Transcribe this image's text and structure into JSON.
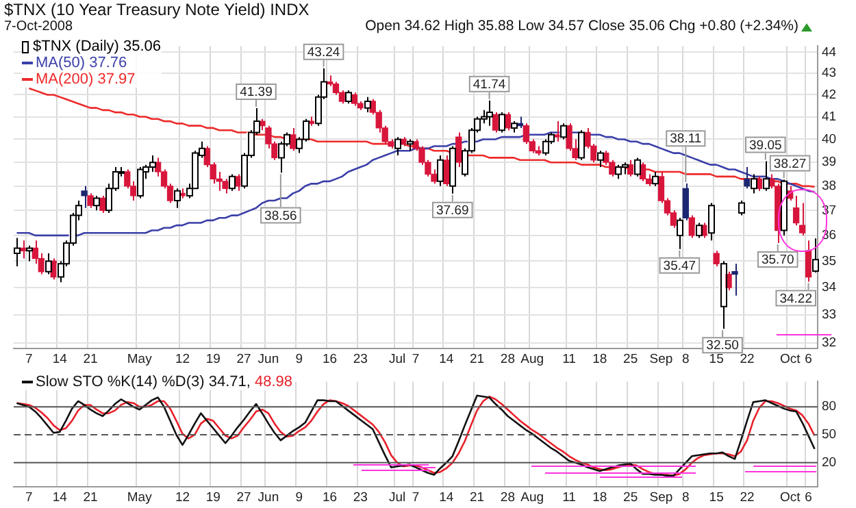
{
  "chart_data": [
    {
      "type": "candlestick",
      "title": "$TNX (10 Year Treasury Note Yield) INDX",
      "subtitle": "7-Oct-2008",
      "annotations": [
        "Open 34.62 High 35.88 Low 34.57 Close 35.06 Chg +0.80 (+2.34%)",
        {
          "text": "41.39",
          "y": 41.39
        },
        {
          "text": "38.56",
          "y": 38.56
        },
        {
          "text": "43.24",
          "y": 43.24
        },
        {
          "text": "37.69",
          "y": 37.69
        },
        {
          "text": "41.74",
          "y": 41.74
        },
        {
          "text": "38.11",
          "y": 38.11
        },
        {
          "text": "35.47",
          "y": 35.47
        },
        {
          "text": "32.50",
          "y": 32.5
        },
        {
          "text": "39.05",
          "y": 39.05
        },
        {
          "text": "38.27",
          "y": 38.27
        },
        {
          "text": "35.70",
          "y": 35.7
        },
        {
          "text": "34.22",
          "x": "6",
          "y": 34.22
        }
      ],
      "legend_title": "$TNX (Daily) 35.06",
      "legend": "top left",
      "grid": true,
      "log": true,
      "ylim": [
        31.8,
        44.3
      ],
      "yticks": [
        32,
        33,
        34,
        35,
        36,
        37,
        38,
        39,
        40,
        41,
        42,
        43,
        44
      ],
      "categories": [
        null,
        null,
        "7",
        null,
        null,
        null,
        null,
        "14",
        null,
        null,
        null,
        null,
        "21",
        null,
        null,
        null,
        null,
        null,
        null,
        null,
        "May",
        null,
        null,
        null,
        null,
        null,
        null,
        "12",
        null,
        null,
        null,
        null,
        "19",
        null,
        null,
        null,
        null,
        "27",
        null,
        null,
        null,
        "Jun",
        null,
        null,
        null,
        null,
        "9",
        null,
        null,
        null,
        null,
        "16",
        null,
        null,
        null,
        null,
        "23",
        null,
        null,
        null,
        null,
        null,
        "Jul",
        null,
        null,
        "7",
        null,
        null,
        null,
        null,
        "14",
        null,
        null,
        null,
        null,
        "21",
        null,
        null,
        null,
        null,
        "28",
        null,
        null,
        null,
        "Aug",
        null,
        null,
        null,
        null,
        null,
        "11",
        null,
        null,
        null,
        null,
        "18",
        null,
        null,
        null,
        null,
        "25",
        null,
        null,
        null,
        null,
        "Sep",
        null,
        null,
        null,
        "8",
        null,
        null,
        null,
        null,
        "15",
        null,
        null,
        null,
        null,
        "22",
        null,
        null,
        null,
        null,
        null,
        null,
        "Oct",
        null,
        null,
        "6",
        null
      ],
      "ohlc": [
        [
          35.3,
          35.9,
          34.8,
          35.5
        ],
        [
          35.5,
          35.8,
          35.1,
          35.4
        ],
        [
          35.4,
          35.6,
          35.0,
          35.5
        ],
        [
          35.5,
          35.8,
          34.9,
          35.1
        ],
        [
          35.1,
          35.3,
          34.5,
          34.6
        ],
        [
          34.6,
          35.3,
          34.5,
          35.0
        ],
        [
          35.0,
          35.1,
          34.3,
          34.4
        ],
        [
          34.4,
          35.0,
          34.2,
          34.9
        ],
        [
          34.9,
          35.8,
          34.8,
          35.7
        ],
        [
          35.7,
          36.9,
          35.6,
          36.8
        ],
        [
          36.8,
          37.4,
          36.6,
          37.2
        ],
        [
          37.8,
          38.0,
          37.1,
          37.6
        ],
        [
          37.6,
          37.7,
          37.1,
          37.2
        ],
        [
          37.2,
          37.6,
          37.0,
          37.5
        ],
        [
          37.5,
          37.6,
          36.9,
          37.0
        ],
        [
          37.0,
          38.1,
          36.9,
          37.9
        ],
        [
          37.9,
          38.8,
          37.8,
          38.6
        ],
        [
          38.6,
          38.8,
          38.4,
          38.6
        ],
        [
          38.6,
          38.7,
          37.9,
          38.0
        ],
        [
          38.0,
          38.2,
          37.4,
          37.6
        ],
        [
          37.6,
          38.8,
          37.5,
          38.7
        ],
        [
          38.6,
          38.9,
          38.3,
          38.8
        ],
        [
          38.8,
          39.3,
          38.6,
          39.0
        ],
        [
          39.0,
          39.2,
          38.4,
          38.6
        ],
        [
          38.6,
          38.7,
          37.9,
          38.0
        ],
        [
          38.0,
          38.1,
          37.3,
          37.4
        ],
        [
          37.4,
          37.9,
          37.1,
          37.8
        ],
        [
          37.7,
          37.9,
          37.5,
          37.6
        ],
        [
          37.6,
          38.1,
          37.5,
          37.9
        ],
        [
          37.9,
          39.5,
          37.9,
          39.4
        ],
        [
          39.3,
          39.9,
          39.2,
          39.6
        ],
        [
          39.6,
          39.7,
          38.8,
          38.9
        ],
        [
          38.9,
          39.0,
          38.1,
          38.3
        ],
        [
          38.3,
          38.6,
          37.8,
          38.2
        ],
        [
          38.2,
          38.3,
          37.7,
          37.9
        ],
        [
          37.9,
          38.5,
          37.8,
          38.4
        ],
        [
          38.4,
          38.5,
          37.8,
          38.0
        ],
        [
          38.0,
          39.4,
          37.9,
          39.3
        ],
        [
          39.3,
          40.4,
          39.2,
          40.3
        ],
        [
          40.3,
          41.39,
          40.2,
          40.8
        ],
        [
          40.8,
          40.9,
          40.4,
          40.6
        ],
        [
          40.5,
          40.6,
          39.6,
          39.8
        ],
        [
          39.8,
          39.9,
          39.1,
          39.2
        ],
        [
          39.2,
          39.9,
          38.56,
          39.8
        ],
        [
          39.8,
          40.3,
          39.7,
          40.2
        ],
        [
          40.2,
          40.5,
          39.5,
          39.6
        ],
        [
          39.6,
          40.1,
          39.4,
          40.0
        ],
        [
          40.0,
          40.9,
          39.9,
          40.8
        ],
        [
          40.8,
          41.0,
          40.6,
          40.7
        ],
        [
          40.7,
          42.0,
          40.6,
          41.9
        ],
        [
          41.9,
          43.24,
          41.8,
          42.6
        ],
        [
          42.6,
          42.9,
          42.4,
          42.5
        ],
        [
          42.5,
          42.6,
          42.0,
          42.1
        ],
        [
          42.1,
          42.2,
          41.6,
          41.7
        ],
        [
          41.7,
          42.2,
          41.6,
          42.1
        ],
        [
          42.0,
          42.1,
          41.5,
          41.6
        ],
        [
          41.6,
          41.7,
          41.3,
          41.4
        ],
        [
          41.4,
          41.9,
          41.2,
          41.7
        ],
        [
          41.7,
          41.8,
          41.1,
          41.2
        ],
        [
          41.2,
          41.3,
          40.3,
          40.5
        ],
        [
          40.5,
          40.6,
          39.8,
          39.9
        ],
        [
          39.9,
          40.0,
          39.6,
          39.7
        ],
        [
          39.6,
          40.1,
          39.3,
          40.0
        ],
        [
          40.0,
          40.1,
          39.7,
          39.8
        ],
        [
          39.8,
          40.0,
          39.5,
          39.9
        ],
        [
          39.9,
          40.0,
          39.5,
          39.6
        ],
        [
          39.6,
          39.7,
          38.9,
          39.0
        ],
        [
          39.0,
          39.1,
          38.4,
          38.5
        ],
        [
          38.5,
          38.7,
          38.1,
          38.2
        ],
        [
          38.2,
          39.3,
          38.0,
          39.1
        ],
        [
          39.1,
          39.3,
          38.0,
          38.1
        ],
        [
          38.0,
          39.7,
          37.69,
          39.6
        ],
        [
          40.1,
          40.3,
          38.8,
          39.0
        ],
        [
          38.5,
          39.6,
          38.4,
          39.5
        ],
        [
          39.5,
          40.5,
          39.4,
          40.4
        ],
        [
          40.4,
          41.0,
          40.3,
          40.9
        ],
        [
          40.9,
          41.3,
          40.7,
          41.0
        ],
        [
          41.0,
          41.74,
          40.6,
          41.2
        ],
        [
          41.1,
          41.2,
          40.3,
          40.4
        ],
        [
          40.4,
          41.2,
          40.3,
          41.1
        ],
        [
          41.1,
          41.2,
          40.4,
          40.5
        ],
        [
          40.5,
          40.8,
          40.3,
          40.7
        ],
        [
          40.7,
          41.0,
          40.5,
          40.6
        ],
        [
          40.6,
          40.7,
          39.8,
          39.9
        ],
        [
          39.9,
          40.0,
          39.4,
          39.5
        ],
        [
          39.5,
          39.7,
          39.3,
          39.4
        ],
        [
          39.4,
          40.0,
          39.3,
          39.9
        ],
        [
          39.9,
          40.3,
          39.8,
          40.2
        ],
        [
          40.2,
          40.8,
          39.9,
          40.1
        ],
        [
          40.1,
          40.7,
          40.0,
          40.6
        ],
        [
          40.6,
          40.7,
          39.5,
          39.6
        ],
        [
          39.6,
          40.0,
          39.1,
          39.2
        ],
        [
          39.2,
          40.4,
          39.1,
          40.3
        ],
        [
          40.3,
          40.5,
          39.6,
          39.7
        ],
        [
          39.7,
          39.8,
          39.0,
          39.1
        ],
        [
          39.1,
          39.5,
          38.8,
          39.4
        ],
        [
          39.4,
          39.5,
          38.9,
          39.0
        ],
        [
          39.0,
          39.1,
          38.4,
          38.5
        ],
        [
          38.5,
          38.9,
          38.3,
          38.8
        ],
        [
          38.8,
          39.0,
          38.5,
          38.9
        ],
        [
          38.9,
          39.1,
          38.4,
          38.5
        ],
        [
          38.5,
          39.2,
          38.4,
          39.1
        ],
        [
          38.9,
          39.0,
          38.2,
          38.3
        ],
        [
          38.3,
          38.5,
          38.0,
          38.1
        ],
        [
          38.1,
          38.6,
          38.0,
          38.4
        ],
        [
          38.4,
          38.6,
          37.3,
          37.4
        ],
        [
          37.4,
          37.5,
          36.8,
          36.9
        ],
        [
          36.9,
          37.0,
          36.3,
          36.4
        ],
        [
          36.0,
          36.7,
          35.47,
          36.6
        ],
        [
          37.9,
          38.11,
          36.6,
          36.7
        ],
        [
          36.7,
          36.8,
          35.9,
          36.0
        ],
        [
          36.0,
          36.5,
          35.9,
          36.4
        ],
        [
          36.4,
          36.5,
          35.9,
          36.0
        ],
        [
          36.1,
          37.3,
          35.8,
          37.2
        ],
        [
          35.3,
          35.4,
          34.8,
          34.9
        ],
        [
          33.3,
          35.0,
          32.5,
          34.9
        ],
        [
          34.5,
          34.6,
          33.9,
          34.0
        ],
        [
          34.6,
          34.9,
          33.7,
          34.5
        ],
        [
          36.9,
          37.4,
          36.8,
          37.3
        ],
        [
          38.3,
          38.8,
          37.9,
          38.0
        ],
        [
          37.9,
          38.5,
          37.7,
          38.3
        ],
        [
          38.3,
          38.4,
          37.8,
          37.9
        ],
        [
          37.9,
          39.05,
          37.8,
          38.3
        ],
        [
          38.3,
          38.5,
          37.9,
          38.0
        ],
        [
          38.0,
          38.1,
          35.7,
          36.2
        ],
        [
          36.2,
          38.27,
          36.0,
          38.2
        ],
        [
          37.8,
          38.0,
          37.4,
          37.5
        ],
        [
          37.1,
          37.6,
          36.4,
          36.5
        ],
        [
          36.4,
          37.3,
          36.0,
          36.1
        ],
        [
          35.4,
          35.8,
          34.22,
          34.4
        ],
        [
          34.62,
          35.88,
          34.57,
          35.06
        ]
      ],
      "colors": [
        "#ffffff",
        "#d8163c",
        "#ffffff",
        "#d8163c",
        "#d8163c",
        "#ffffff",
        "#d8163c",
        "#ffffff",
        "#ffffff",
        "#ffffff",
        "#ffffff",
        "#1c2670",
        "#d8163c",
        "#ffffff",
        "#d8163c",
        "#ffffff",
        "#ffffff",
        "#ffffff",
        "#d8163c",
        "#d8163c",
        "#ffffff",
        "#ffffff",
        "#ffffff",
        "#d8163c",
        "#d8163c",
        "#d8163c",
        "#ffffff",
        "#d8163c",
        "#ffffff",
        "#ffffff",
        "#ffffff",
        "#d8163c",
        "#d8163c",
        "#d8163c",
        "#d8163c",
        "#ffffff",
        "#d8163c",
        "#ffffff",
        "#ffffff",
        "#ffffff",
        "#d8163c",
        "#d8163c",
        "#d8163c",
        "#ffffff",
        "#ffffff",
        "#d8163c",
        "#ffffff",
        "#ffffff",
        "#d8163c",
        "#ffffff",
        "#ffffff",
        "#d8163c",
        "#d8163c",
        "#d8163c",
        "#ffffff",
        "#d8163c",
        "#d8163c",
        "#ffffff",
        "#d8163c",
        "#d8163c",
        "#d8163c",
        "#d8163c",
        "#ffffff",
        "#d8163c",
        "#ffffff",
        "#d8163c",
        "#d8163c",
        "#d8163c",
        "#d8163c",
        "#ffffff",
        "#d8163c",
        "#ffffff",
        "#d8163c",
        "#ffffff",
        "#ffffff",
        "#ffffff",
        "#ffffff",
        "#ffffff",
        "#d8163c",
        "#ffffff",
        "#d8163c",
        "#ffffff",
        "#1c2670",
        "#d8163c",
        "#d8163c",
        "#d8163c",
        "#ffffff",
        "#ffffff",
        "#d8163c",
        "#ffffff",
        "#d8163c",
        "#d8163c",
        "#ffffff",
        "#d8163c",
        "#d8163c",
        "#ffffff",
        "#d8163c",
        "#d8163c",
        "#ffffff",
        "#ffffff",
        "#d8163c",
        "#ffffff",
        "#d8163c",
        "#d8163c",
        "#ffffff",
        "#d8163c",
        "#d8163c",
        "#d8163c",
        "#ffffff",
        "#1c2670",
        "#d8163c",
        "#ffffff",
        "#d8163c",
        "#ffffff",
        "#d8163c",
        "#ffffff",
        "#d8163c",
        "#1c2670",
        "#ffffff",
        "#1c2670",
        "#ffffff",
        "#d8163c",
        "#ffffff",
        "#d8163c",
        "#d8163c",
        "#ffffff",
        "#d8163c",
        "#d8163c",
        "#d8163c",
        "#d8163c",
        "#ffffff"
      ],
      "series": [
        {
          "type": "line",
          "name": "MA(50) 37.76",
          "color": "#3a3fa8",
          "values": [
            36.1,
            36.1,
            36.1,
            36.0,
            36.0,
            36.0,
            36.0,
            36.0,
            36.0,
            36.0,
            36.0,
            36.1,
            36.1,
            36.1,
            36.1,
            36.1,
            36.1,
            36.1,
            36.1,
            36.1,
            36.1,
            36.1,
            36.2,
            36.2,
            36.3,
            36.3,
            36.4,
            36.4,
            36.5,
            36.5,
            36.5,
            36.6,
            36.6,
            36.7,
            36.7,
            36.8,
            36.8,
            36.9,
            37.0,
            37.1,
            37.3,
            37.4,
            37.4,
            37.5,
            37.5,
            37.7,
            37.8,
            38.0,
            38.1,
            38.1,
            38.2,
            38.2,
            38.3,
            38.4,
            38.6,
            38.7,
            38.8,
            38.9,
            39.1,
            39.2,
            39.3,
            39.4,
            39.5,
            39.5,
            39.5,
            39.6,
            39.6,
            39.6,
            39.7,
            39.7,
            39.7,
            39.8,
            39.8,
            39.9,
            39.9,
            39.9,
            40.0,
            40.0,
            40.0,
            40.1,
            40.1,
            40.1,
            40.1,
            40.2,
            40.2,
            40.2,
            40.2,
            40.3,
            40.3,
            40.3,
            40.3,
            40.3,
            40.3,
            40.2,
            40.2,
            40.2,
            40.1,
            40.1,
            40.0,
            40.0,
            39.9,
            39.9,
            39.8,
            39.8,
            39.7,
            39.6,
            39.5,
            39.4,
            39.4,
            39.3,
            39.2,
            39.1,
            39.0,
            38.9,
            38.9,
            38.8,
            38.7,
            38.7,
            38.6,
            38.5,
            38.4,
            38.4,
            38.4,
            38.3,
            38.3,
            38.2,
            38.1,
            38.0,
            37.9,
            37.8,
            37.76
          ]
        },
        {
          "type": "line",
          "name": "MA(200) 37.97",
          "color": "#ee2a2a",
          "values": [
            null,
            null,
            42.3,
            42.2,
            42.1,
            42.0,
            42.0,
            41.9,
            41.8,
            41.7,
            41.6,
            41.5,
            41.4,
            41.4,
            41.3,
            41.3,
            41.2,
            41.2,
            41.1,
            41.1,
            41.0,
            41.0,
            40.9,
            40.9,
            40.8,
            40.8,
            40.7,
            40.7,
            40.6,
            40.6,
            40.6,
            40.5,
            40.5,
            40.4,
            40.4,
            40.4,
            40.3,
            40.3,
            40.3,
            40.2,
            40.2,
            40.2,
            40.1,
            40.1,
            40.0,
            40.0,
            40.0,
            40.0,
            40.0,
            39.9,
            39.9,
            39.9,
            39.9,
            39.9,
            39.9,
            39.9,
            39.9,
            39.9,
            39.8,
            39.8,
            39.8,
            39.8,
            39.8,
            39.8,
            39.7,
            39.7,
            39.6,
            39.6,
            39.5,
            39.5,
            39.5,
            39.4,
            39.4,
            39.3,
            39.3,
            39.3,
            39.3,
            39.2,
            39.2,
            39.2,
            39.2,
            39.2,
            39.1,
            39.1,
            39.1,
            39.1,
            39.1,
            39.0,
            39.0,
            39.0,
            39.0,
            39.0,
            38.9,
            38.9,
            38.9,
            38.9,
            38.8,
            38.8,
            38.8,
            38.8,
            38.7,
            38.7,
            38.7,
            38.7,
            38.6,
            38.6,
            38.6,
            38.6,
            38.6,
            38.5,
            38.5,
            38.5,
            38.5,
            38.5,
            38.4,
            38.4,
            38.4,
            38.4,
            38.3,
            38.3,
            38.3,
            38.3,
            38.2,
            38.2,
            38.2,
            38.1,
            38.1,
            38.1,
            38.0,
            38.0,
            37.97
          ]
        }
      ]
    },
    {
      "type": "line",
      "legend": "top left",
      "grid": "x",
      "ylim": [
        -6,
        107
      ],
      "yticks": [
        20,
        50,
        80
      ],
      "ref_lines": [
        {
          "axis": "y",
          "value": 80,
          "color": "#555555",
          "line_style": "solid"
        },
        {
          "axis": "y",
          "value": 50,
          "color": "#555555",
          "line_style": "dashed"
        },
        {
          "axis": "y",
          "value": 20,
          "color": "#555555",
          "line_style": "solid"
        }
      ],
      "categories": [
        null,
        null,
        "7",
        null,
        null,
        null,
        null,
        "14",
        null,
        null,
        null,
        null,
        "21",
        null,
        null,
        null,
        null,
        null,
        null,
        null,
        "May",
        null,
        null,
        null,
        null,
        null,
        null,
        "12",
        null,
        null,
        null,
        null,
        "19",
        null,
        null,
        null,
        null,
        "27",
        null,
        null,
        null,
        "Jun",
        null,
        null,
        null,
        null,
        "9",
        null,
        null,
        null,
        null,
        "16",
        null,
        null,
        null,
        null,
        "23",
        null,
        null,
        null,
        null,
        null,
        "Jul",
        null,
        null,
        "7",
        null,
        null,
        null,
        null,
        "14",
        null,
        null,
        null,
        null,
        "21",
        null,
        null,
        null,
        null,
        "28",
        null,
        null,
        null,
        "Aug",
        null,
        null,
        null,
        null,
        null,
        "11",
        null,
        null,
        null,
        null,
        "18",
        null,
        null,
        null,
        null,
        "25",
        null,
        null,
        null,
        null,
        "Sep",
        null,
        null,
        null,
        "8",
        null,
        null,
        null,
        null,
        "15",
        null,
        null,
        null,
        null,
        "22",
        null,
        null,
        null,
        null,
        null,
        null,
        "Oct",
        null,
        null,
        "6",
        null
      ],
      "series": [
        {
          "name": "Slow STO %K(14) %D(3) 34.71,",
          "color": "#111111",
          "values": [
            84,
            82,
            80,
            75,
            68,
            60,
            52,
            53,
            65,
            78,
            86,
            82,
            77,
            73,
            70,
            76,
            83,
            88,
            84,
            80,
            77,
            82,
            87,
            90,
            80,
            65,
            50,
            39,
            50,
            62,
            73,
            65,
            57,
            49,
            41,
            49,
            58,
            66,
            75,
            83,
            73,
            62,
            52,
            44,
            49,
            54,
            58,
            63,
            75,
            87,
            87,
            86,
            86,
            81,
            76,
            71,
            66,
            61,
            56,
            42,
            28,
            15,
            16,
            17,
            18,
            15,
            12,
            9,
            7,
            14,
            20,
            27,
            43,
            60,
            76,
            92,
            91,
            90,
            83,
            77,
            70,
            65,
            60,
            55,
            51,
            46,
            41,
            36,
            32,
            27,
            22,
            20,
            18,
            15,
            13,
            11,
            13,
            15,
            17,
            18,
            19,
            13,
            8,
            8,
            7,
            7,
            6,
            6,
            13,
            20,
            27,
            28,
            29,
            30,
            30,
            31,
            27,
            24,
            44,
            65,
            85,
            86,
            87,
            84,
            81,
            78,
            76,
            75,
            63,
            49,
            34.71
          ]
        },
        {
          "name": "48.98",
          "color": "#e8202a",
          "values": [
            84,
            83,
            82,
            79,
            74,
            68,
            60,
            55,
            57,
            65,
            76,
            82,
            82,
            77,
            73,
            73,
            76,
            82,
            85,
            84,
            80,
            80,
            82,
            86,
            86,
            78,
            65,
            51,
            46,
            50,
            62,
            67,
            65,
            57,
            49,
            46,
            49,
            58,
            66,
            75,
            77,
            73,
            62,
            53,
            48,
            49,
            54,
            58,
            65,
            75,
            83,
            87,
            86,
            84,
            81,
            76,
            71,
            66,
            61,
            53,
            42,
            28,
            20,
            16,
            17,
            17,
            15,
            12,
            9,
            10,
            14,
            20,
            30,
            43,
            60,
            76,
            86,
            91,
            88,
            83,
            77,
            71,
            65,
            60,
            55,
            51,
            46,
            41,
            36,
            32,
            27,
            23,
            20,
            18,
            15,
            13,
            12,
            13,
            15,
            17,
            18,
            17,
            13,
            10,
            8,
            7,
            7,
            6,
            8,
            13,
            20,
            25,
            28,
            29,
            30,
            30,
            29,
            27,
            32,
            44,
            65,
            79,
            86,
            86,
            84,
            81,
            78,
            76,
            71,
            62,
            48.98
          ]
        }
      ]
    }
  ]
}
